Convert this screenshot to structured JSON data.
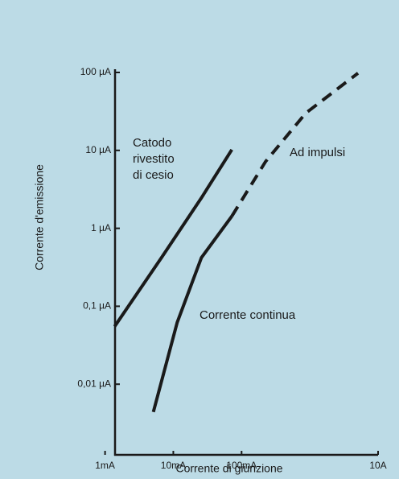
{
  "chart_data": {
    "type": "line",
    "xlabel": "Corrente di giunzione",
    "ylabel": "Corrente d'emissione",
    "xscale": "log",
    "yscale": "log",
    "xlim": [
      1.4,
      10000
    ],
    "ylim": [
      0.00124,
      100
    ],
    "xticks": [
      {
        "value": 1,
        "label": "1mA"
      },
      {
        "value": 10,
        "label": "10mA"
      },
      {
        "value": 100,
        "label": "100mA"
      },
      {
        "value": 10000,
        "label": "10A"
      }
    ],
    "yticks": [
      {
        "value": 100,
        "label": "100 µA"
      },
      {
        "value": 10,
        "label": "10 µA"
      },
      {
        "value": 1,
        "label": "1 µA"
      },
      {
        "value": 0.1,
        "label": "0,1 µA"
      },
      {
        "value": 0.01,
        "label": "0,01 µA"
      }
    ],
    "series": [
      {
        "color": "#1a1a1a",
        "dashed": false,
        "x": [
          1.38,
          6.7,
          25.8,
          72
        ],
        "values": [
          0.055,
          0.42,
          2.46,
          10.2
        ]
      },
      {
        "color": "#1a1a1a",
        "dashed": false,
        "x": [
          5.1,
          11.4,
          25.8,
          72
        ],
        "values": [
          0.0044,
          0.062,
          0.42,
          1.43
        ]
      },
      {
        "color": "#1a1a1a",
        "dashed": true,
        "x": [
          72,
          225,
          870,
          5080
        ],
        "values": [
          1.43,
          7.2,
          30,
          98
        ]
      }
    ],
    "annotations": [
      {
        "lines": [
          "Catodo",
          "rivestito",
          "di cesio"
        ]
      },
      {
        "lines": [
          "Ad impulsi"
        ]
      },
      {
        "lines": [
          "Corrente continua"
        ]
      }
    ]
  }
}
